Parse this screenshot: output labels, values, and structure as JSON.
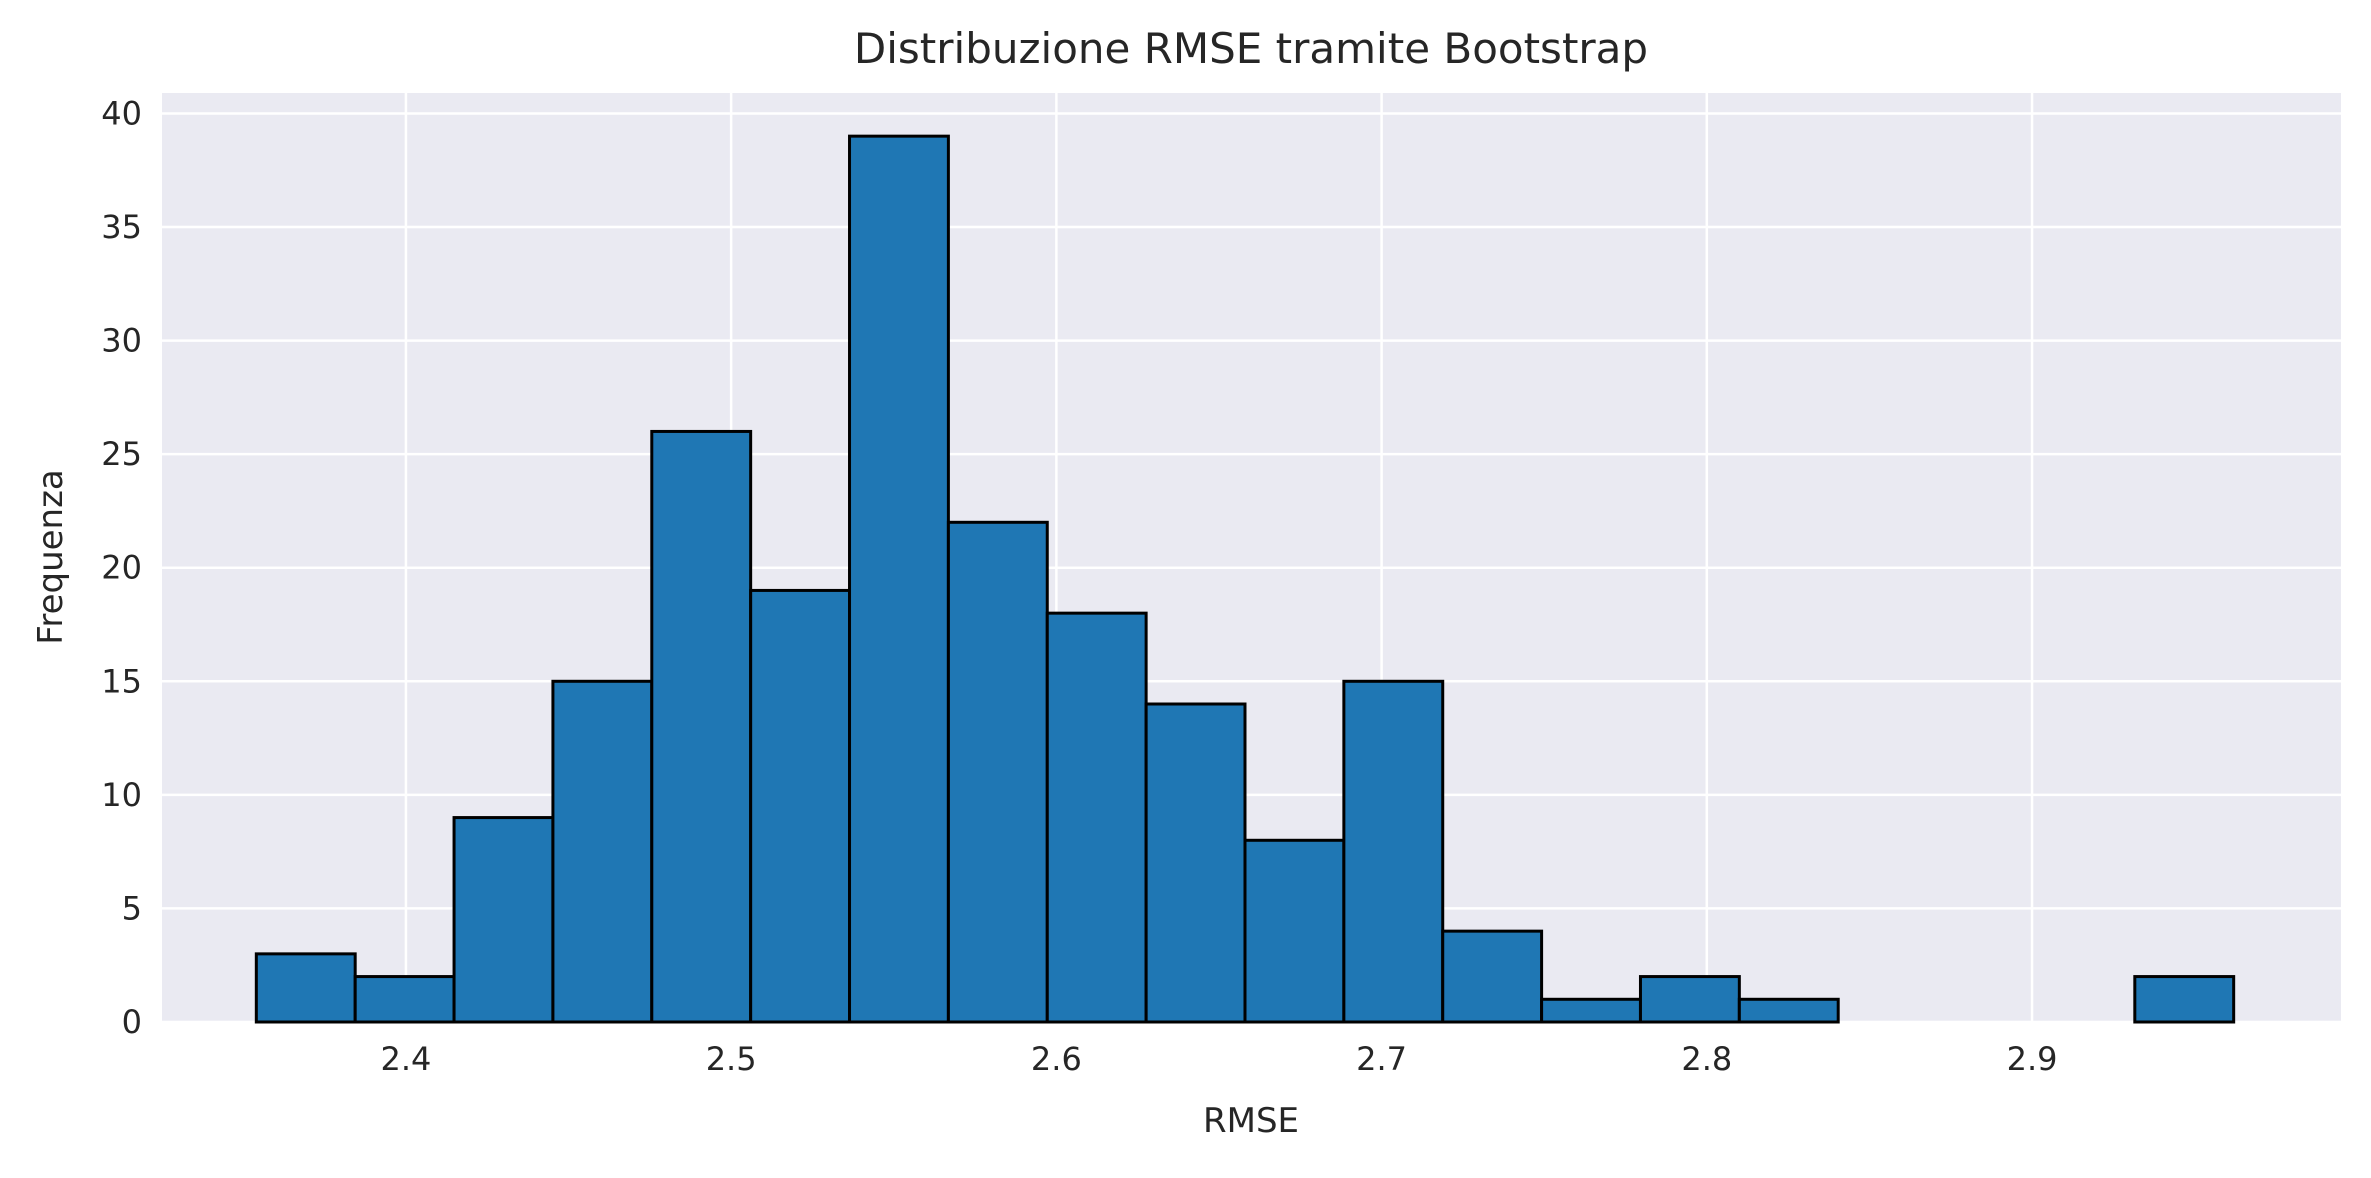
{
  "chart_data": {
    "type": "bar",
    "subtype": "histogram",
    "title": "Distribuzione RMSE tramite Bootstrap",
    "xlabel": "RMSE",
    "ylabel": "Frequenza",
    "xlim": [
      2.325,
      2.995
    ],
    "ylim": [
      0,
      40.9
    ],
    "x_ticks": [
      2.4,
      2.5,
      2.6,
      2.7,
      2.8,
      2.9
    ],
    "x_tick_labels": [
      "2.4",
      "2.5",
      "2.6",
      "2.7",
      "2.8",
      "2.9"
    ],
    "y_ticks": [
      0,
      5,
      10,
      15,
      20,
      25,
      30,
      35,
      40
    ],
    "y_tick_labels": [
      "0",
      "5",
      "10",
      "15",
      "20",
      "25",
      "30",
      "35",
      "40"
    ],
    "bin_start": 2.354,
    "bin_width": 0.0304,
    "values": [
      3,
      2,
      9,
      15,
      26,
      19,
      39,
      22,
      18,
      14,
      8,
      15,
      4,
      1,
      2,
      1,
      0,
      0,
      0,
      2
    ],
    "grid": true,
    "legend": false,
    "colors": {
      "bar_fill": "#1f77b4",
      "bar_edge": "#000000",
      "plot_background": "#eaeaf2",
      "grid": "#ffffff"
    }
  }
}
